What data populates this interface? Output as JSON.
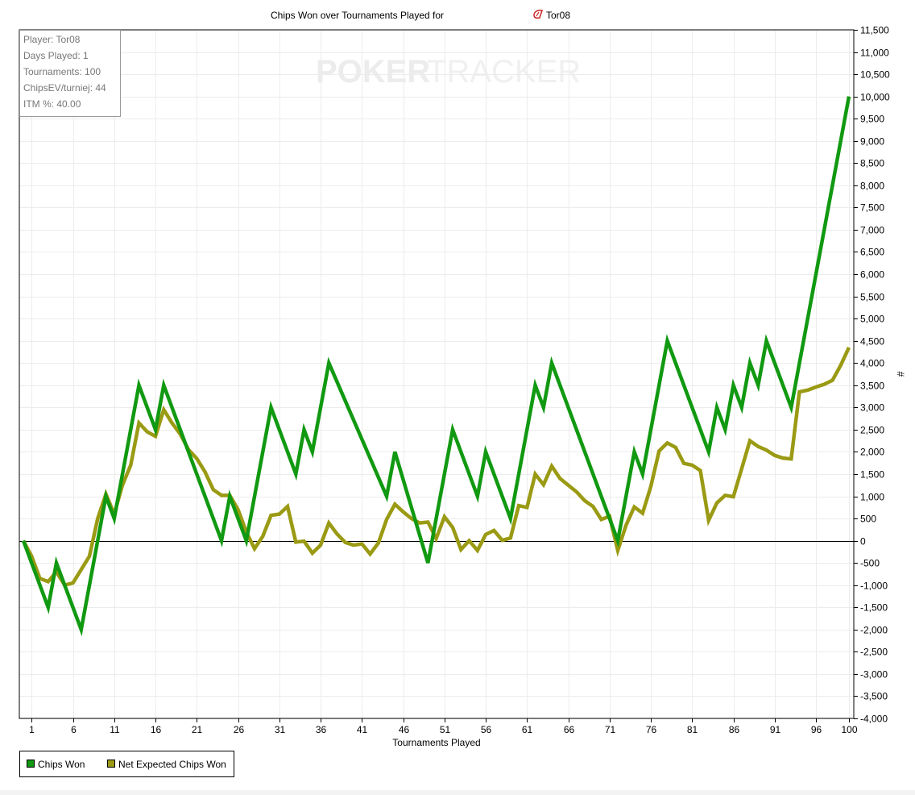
{
  "chart_data": {
    "type": "line",
    "title": "Chips Won over Tournaments Played for",
    "player_name": "Tor08",
    "xlabel": "Tournaments Played",
    "ylabel": "#",
    "xlim": [
      0,
      100
    ],
    "ylim": [
      -4000,
      11500
    ],
    "y_tick_step": 500,
    "x_ticks": [
      1,
      6,
      11,
      16,
      21,
      26,
      31,
      36,
      41,
      46,
      51,
      56,
      61,
      66,
      71,
      76,
      81,
      86,
      91,
      96,
      100
    ],
    "grid": true,
    "legend_position": "bottom-left",
    "info_box": {
      "lines": [
        "Player: Tor08",
        "Days Played: 1",
        "Tournaments: 100",
        "ChipsEV/turniej: 44",
        "ITM %: 40.00"
      ]
    },
    "watermark": {
      "left": "POKER",
      "right": "TRACKER"
    },
    "series": [
      {
        "name": "Chips Won",
        "color": "#119911",
        "points": [
          [
            0,
            0
          ],
          [
            3,
            -1500
          ],
          [
            4,
            -500
          ],
          [
            7,
            -2000
          ],
          [
            10,
            1000
          ],
          [
            11,
            500
          ],
          [
            14,
            3500
          ],
          [
            16,
            2500
          ],
          [
            17,
            3500
          ],
          [
            24,
            0
          ],
          [
            25,
            1000
          ],
          [
            27,
            0
          ],
          [
            30,
            3000
          ],
          [
            33,
            1500
          ],
          [
            34,
            2500
          ],
          [
            35,
            2000
          ],
          [
            37,
            4000
          ],
          [
            44,
            1000
          ],
          [
            45,
            2000
          ],
          [
            49,
            -500
          ],
          [
            52,
            2500
          ],
          [
            55,
            1000
          ],
          [
            56,
            2000
          ],
          [
            59,
            500
          ],
          [
            62,
            3500
          ],
          [
            63,
            3000
          ],
          [
            64,
            4000
          ],
          [
            72,
            0
          ],
          [
            74,
            2000
          ],
          [
            75,
            1500
          ],
          [
            78,
            4500
          ],
          [
            83,
            2000
          ],
          [
            84,
            3000
          ],
          [
            85,
            2500
          ],
          [
            86,
            3500
          ],
          [
            87,
            3000
          ],
          [
            88,
            4000
          ],
          [
            89,
            3500
          ],
          [
            90,
            4500
          ],
          [
            93,
            3000
          ],
          [
            100,
            10000
          ]
        ]
      },
      {
        "name": "Net Expected Chips Won",
        "color": "#9a9a14",
        "points": [
          [
            0,
            0
          ],
          [
            1,
            -350
          ],
          [
            2,
            -850
          ],
          [
            3,
            -920
          ],
          [
            4,
            -700
          ],
          [
            5,
            -1000
          ],
          [
            6,
            -950
          ],
          [
            7,
            -650
          ],
          [
            8,
            -350
          ],
          [
            9,
            500
          ],
          [
            10,
            1050
          ],
          [
            11,
            600
          ],
          [
            12,
            1250
          ],
          [
            13,
            1700
          ],
          [
            14,
            2650
          ],
          [
            15,
            2450
          ],
          [
            16,
            2350
          ],
          [
            17,
            2950
          ],
          [
            18,
            2650
          ],
          [
            19,
            2400
          ],
          [
            20,
            2050
          ],
          [
            21,
            1850
          ],
          [
            22,
            1550
          ],
          [
            23,
            1150
          ],
          [
            24,
            1020
          ],
          [
            25,
            1020
          ],
          [
            26,
            700
          ],
          [
            27,
            200
          ],
          [
            28,
            -180
          ],
          [
            29,
            100
          ],
          [
            30,
            570
          ],
          [
            31,
            600
          ],
          [
            32,
            770
          ],
          [
            33,
            -30
          ],
          [
            34,
            -10
          ],
          [
            35,
            -280
          ],
          [
            36,
            -100
          ],
          [
            37,
            400
          ],
          [
            38,
            150
          ],
          [
            39,
            -40
          ],
          [
            40,
            -100
          ],
          [
            41,
            -70
          ],
          [
            42,
            -300
          ],
          [
            43,
            -50
          ],
          [
            44,
            480
          ],
          [
            45,
            820
          ],
          [
            46,
            650
          ],
          [
            47,
            500
          ],
          [
            48,
            400
          ],
          [
            49,
            420
          ],
          [
            50,
            50
          ],
          [
            51,
            540
          ],
          [
            52,
            300
          ],
          [
            53,
            -200
          ],
          [
            54,
            0
          ],
          [
            55,
            -220
          ],
          [
            56,
            140
          ],
          [
            57,
            230
          ],
          [
            58,
            10
          ],
          [
            59,
            60
          ],
          [
            60,
            790
          ],
          [
            61,
            750
          ],
          [
            62,
            1500
          ],
          [
            63,
            1260
          ],
          [
            64,
            1680
          ],
          [
            65,
            1400
          ],
          [
            66,
            1250
          ],
          [
            67,
            1100
          ],
          [
            68,
            900
          ],
          [
            69,
            770
          ],
          [
            70,
            480
          ],
          [
            71,
            550
          ],
          [
            72,
            -220
          ],
          [
            73,
            350
          ],
          [
            74,
            760
          ],
          [
            75,
            620
          ],
          [
            76,
            1220
          ],
          [
            77,
            2020
          ],
          [
            78,
            2200
          ],
          [
            79,
            2100
          ],
          [
            80,
            1740
          ],
          [
            81,
            1700
          ],
          [
            82,
            1580
          ],
          [
            83,
            460
          ],
          [
            84,
            850
          ],
          [
            85,
            1020
          ],
          [
            86,
            990
          ],
          [
            87,
            1620
          ],
          [
            88,
            2250
          ],
          [
            89,
            2120
          ],
          [
            90,
            2040
          ],
          [
            91,
            1920
          ],
          [
            92,
            1860
          ],
          [
            93,
            1840
          ],
          [
            94,
            3350
          ],
          [
            95,
            3390
          ],
          [
            96,
            3460
          ],
          [
            97,
            3520
          ],
          [
            98,
            3610
          ],
          [
            99,
            3950
          ],
          [
            100,
            4350
          ]
        ]
      }
    ]
  }
}
